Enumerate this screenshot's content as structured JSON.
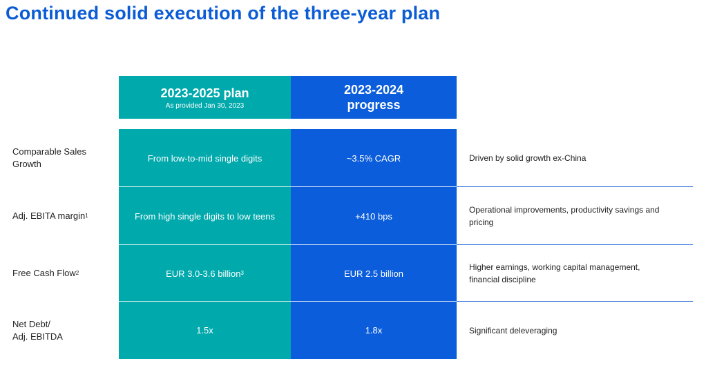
{
  "title": "Continued solid execution of the three-year plan",
  "header": {
    "plan_title": "2023-2025 plan",
    "plan_subtitle": "As provided Jan 30, 2023",
    "progress_title_line1": "2023-2024",
    "progress_title_line2": "progress"
  },
  "rows": [
    {
      "label": "Comparable Sales Growth",
      "plan": "From low-to-mid single digits",
      "progress": "~3.5% CAGR",
      "note": "Driven by solid growth ex-China"
    },
    {
      "label": "Adj. EBITA margin",
      "label_footnote": "1",
      "plan": "From high single digits to low teens",
      "progress": "+410 bps",
      "note": "Operational improvements, productivity savings and pricing"
    },
    {
      "label": "Free Cash Flow",
      "label_footnote": "2",
      "plan": "EUR 3.0-3.6 billion",
      "plan_footnote": "3",
      "progress": "EUR 2.5 billion",
      "note": "Higher earnings, working capital management, financial discipline"
    },
    {
      "label_line1": "Net Debt/",
      "label_line2": "Adj. EBITDA",
      "plan": "1.5x",
      "progress": "1.8x",
      "note": "Significant deleveraging"
    }
  ],
  "colors": {
    "title": "#0b5cd5",
    "plan_teal": "#00a9ac",
    "progress_blue": "#0b5ddb",
    "divider": "#2c6fd9"
  }
}
